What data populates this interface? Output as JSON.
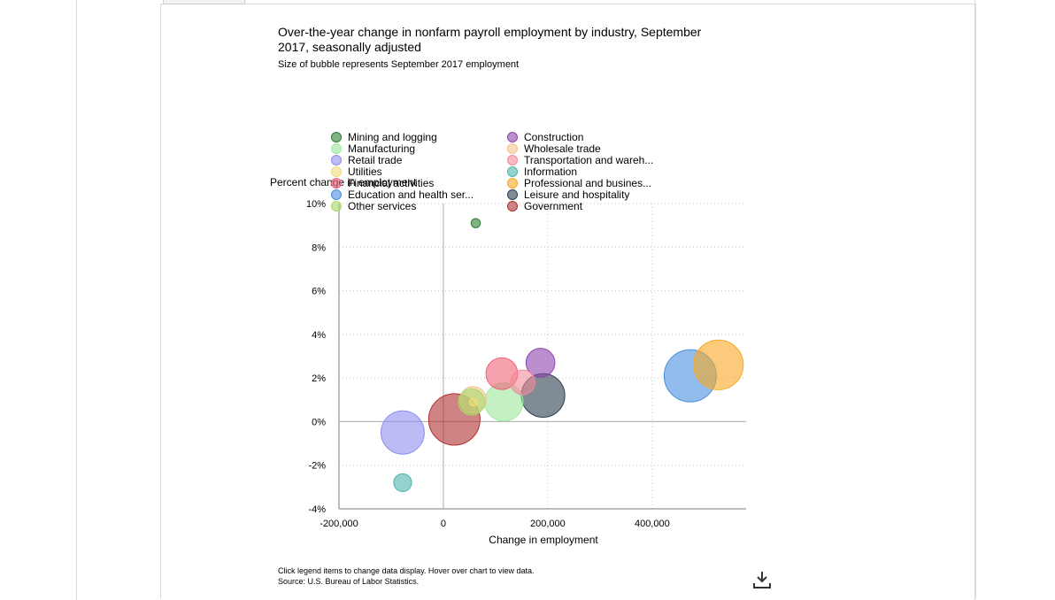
{
  "chart_data": {
    "type": "scatter",
    "title": "Over-the-year change in nonfarm payroll employment by industry, September 2017, seasonally adjusted",
    "subtitle": "Size of bubble represents September 2017 employment",
    "xlabel": "Change in employment",
    "ylabel": "Percent change in employment",
    "xlim": [
      -200000,
      580000
    ],
    "ylim": [
      -4,
      10
    ],
    "x_ticks": [
      -200000,
      0,
      200000,
      400000
    ],
    "x_tick_labels": [
      "-200,000",
      "0",
      "200,000",
      "400,000"
    ],
    "y_ticks": [
      -4,
      -2,
      0,
      2,
      4,
      6,
      8,
      10
    ],
    "y_tick_labels": [
      "-4%",
      "-2%",
      "0%",
      "2%",
      "4%",
      "6%",
      "8%",
      "10%"
    ],
    "grid": true,
    "legend_position": "top",
    "series": [
      {
        "name": "Mining and logging",
        "x": 62000,
        "y": 9.1,
        "size": 0.72,
        "color": "#2e7d32"
      },
      {
        "name": "Construction",
        "x": 186000,
        "y": 2.7,
        "size": 7.0,
        "color": "#8e44ad"
      },
      {
        "name": "Manufacturing",
        "x": 116000,
        "y": 0.9,
        "size": 12.4,
        "color": "#9be89b"
      },
      {
        "name": "Wholesale trade",
        "x": 57000,
        "y": 1.0,
        "size": 5.9,
        "color": "#f6c38f"
      },
      {
        "name": "Retail trade",
        "x": -78000,
        "y": -0.5,
        "size": 15.8,
        "color": "#8d8ef0"
      },
      {
        "name": "Transportation and wareh...",
        "x": 152000,
        "y": 1.8,
        "size": 5.1,
        "color": "#f28a99"
      },
      {
        "name": "Utilities",
        "x": 58000,
        "y": 0.9,
        "size": 0.55,
        "color": "#f2dd7a"
      },
      {
        "name": "Information",
        "x": -78000,
        "y": -2.8,
        "size": 2.7,
        "color": "#4db6ac"
      },
      {
        "name": "Financial activities",
        "x": 112000,
        "y": 2.2,
        "size": 8.5,
        "color": "#f06278"
      },
      {
        "name": "Professional and busines...",
        "x": 527000,
        "y": 2.6,
        "size": 20.8,
        "color": "#f8a823"
      },
      {
        "name": "Education and health ser...",
        "x": 473000,
        "y": 2.1,
        "size": 23.0,
        "color": "#4a8fdd"
      },
      {
        "name": "Leisure and hospitality",
        "x": 191000,
        "y": 1.2,
        "size": 16.0,
        "color": "#2c3e50"
      },
      {
        "name": "Other services",
        "x": 54000,
        "y": 0.9,
        "size": 5.8,
        "color": "#a6d96a"
      },
      {
        "name": "Government",
        "x": 21000,
        "y": 0.1,
        "size": 22.3,
        "color": "#b03030"
      }
    ]
  },
  "footer": {
    "note": "Click legend items to change data display. Hover over chart to view data.",
    "source": "Source: U.S. Bureau of Labor Statistics."
  },
  "icons": {
    "download": "download-icon"
  }
}
